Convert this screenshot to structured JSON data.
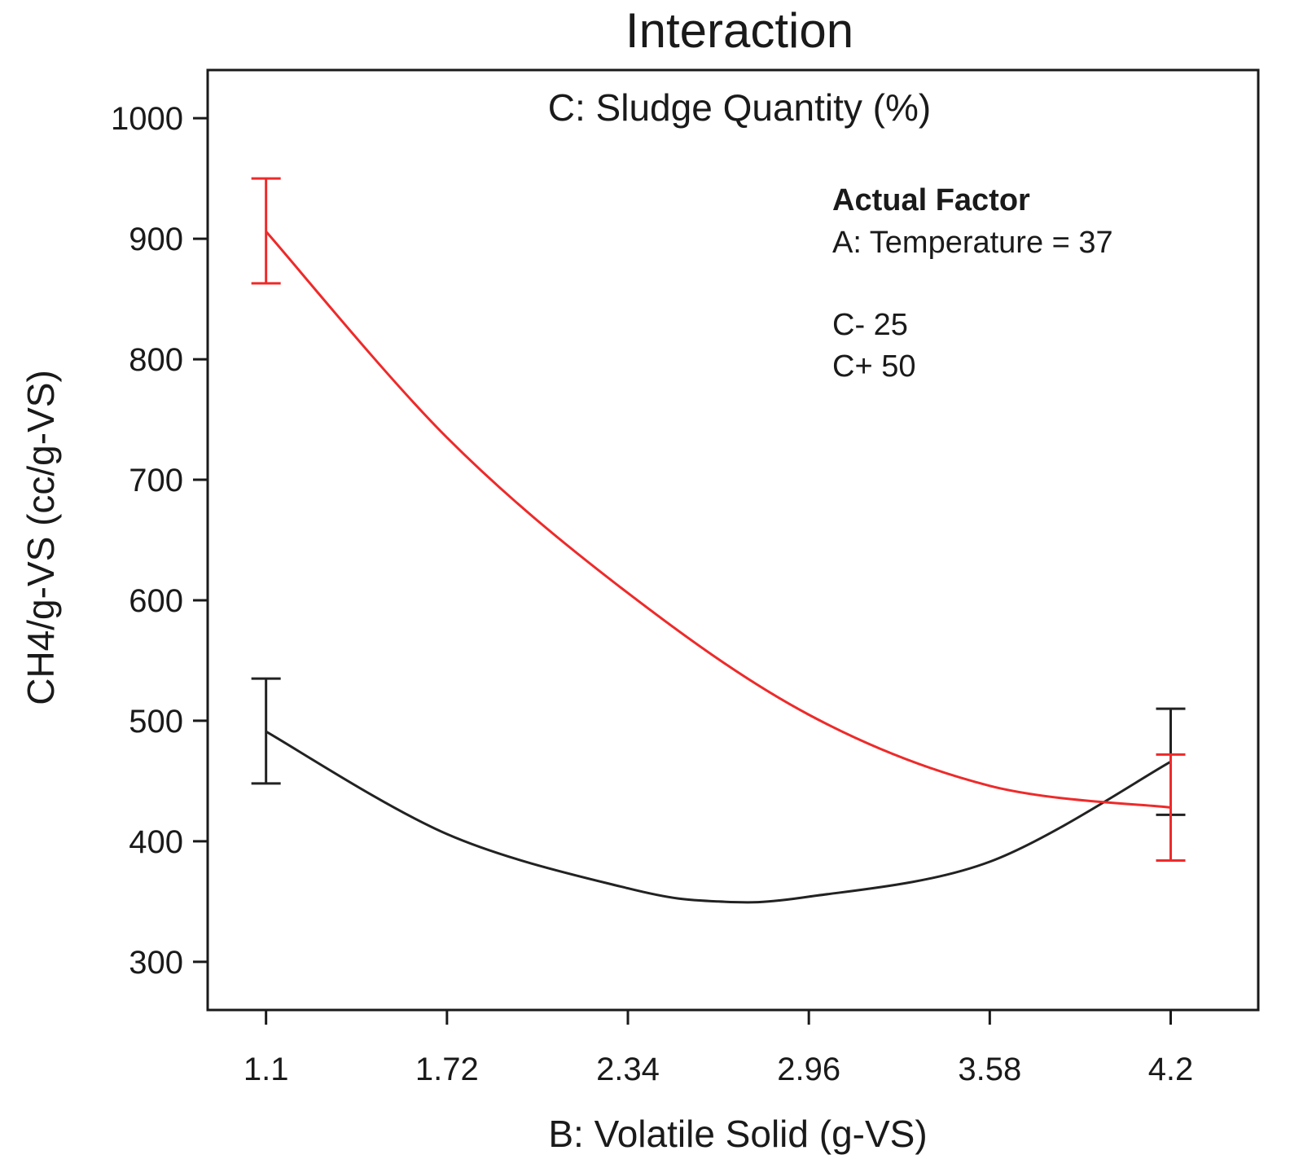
{
  "chart_data": {
    "type": "line",
    "title": "Interaction",
    "subtitle": "C: Sludge Quantity (%)",
    "xlabel": "B: Volatile Solid (g-VS)",
    "ylabel": "CH4/g-VS (cc/g-VS)",
    "xlim": [
      0.9,
      4.5
    ],
    "ylim": [
      260,
      1040
    ],
    "x_ticks": [
      "1.1",
      "1.72",
      "2.34",
      "2.96",
      "3.58",
      "4.2"
    ],
    "y_ticks": [
      "300",
      "400",
      "500",
      "600",
      "700",
      "800",
      "900",
      "1000"
    ],
    "grid": false,
    "legend": {
      "position": "top-right",
      "header": "Actual Factor",
      "factor_text": "A: Temperature = 37"
    },
    "series": [
      {
        "name": "C- 25",
        "color": "#222222",
        "curve": [
          [
            1.1,
            491
          ],
          [
            1.72,
            406
          ],
          [
            2.34,
            361
          ],
          [
            2.65,
            350
          ],
          [
            2.96,
            354
          ],
          [
            3.58,
            383
          ],
          [
            4.2,
            466
          ]
        ],
        "error_bars": [
          {
            "x": 1.1,
            "low": 448,
            "high": 535
          },
          {
            "x": 4.2,
            "low": 422,
            "high": 510
          }
        ]
      },
      {
        "name": "C+ 50",
        "color": "#ee2a2a",
        "curve": [
          [
            1.1,
            906
          ],
          [
            1.72,
            735
          ],
          [
            2.34,
            606
          ],
          [
            2.96,
            505
          ],
          [
            3.58,
            446
          ],
          [
            4.2,
            428
          ]
        ],
        "error_bars": [
          {
            "x": 1.1,
            "low": 863,
            "high": 950
          },
          {
            "x": 4.2,
            "low": 384,
            "high": 472
          }
        ]
      }
    ]
  }
}
